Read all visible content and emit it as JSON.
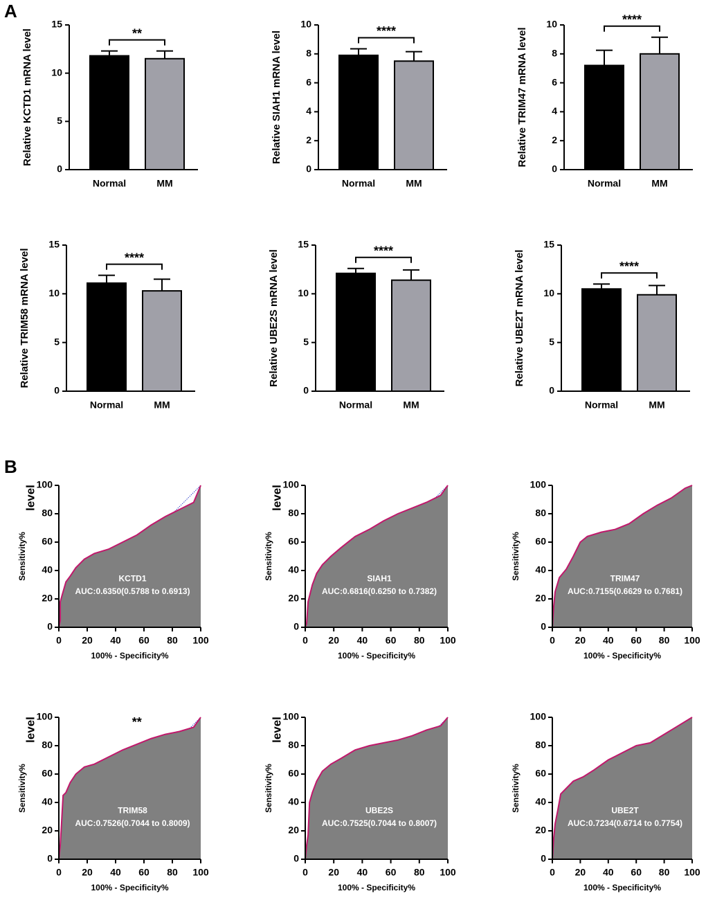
{
  "panel_labels": [
    "A",
    "B"
  ],
  "chart_data": [
    {
      "type": "bar",
      "ylabel": "Relative KCTD1 mRNA level",
      "categories": [
        "Normal",
        "MM"
      ],
      "values": [
        11.8,
        11.5
      ],
      "errors": [
        0.5,
        0.8
      ],
      "colors": [
        "#000000",
        "#a0a0a8"
      ],
      "ylim": [
        0,
        15
      ],
      "yticks": [
        0,
        5,
        10,
        15
      ],
      "annotation": "**"
    },
    {
      "type": "bar",
      "ylabel": "Relative SIAH1 mRNA level",
      "categories": [
        "Normal",
        "MM"
      ],
      "values": [
        7.9,
        7.5
      ],
      "errors": [
        0.45,
        0.65
      ],
      "colors": [
        "#000000",
        "#a0a0a8"
      ],
      "ylim": [
        0,
        10
      ],
      "yticks": [
        0,
        2,
        4,
        6,
        8,
        10
      ],
      "annotation": "****"
    },
    {
      "type": "bar",
      "ylabel": "Relative TRIM47 mRNA level",
      "categories": [
        "Normal",
        "MM"
      ],
      "values": [
        7.2,
        8.0
      ],
      "errors": [
        1.05,
        1.15
      ],
      "colors": [
        "#000000",
        "#a0a0a8"
      ],
      "ylim": [
        0,
        10
      ],
      "yticks": [
        0,
        2,
        4,
        6,
        8,
        10
      ],
      "annotation": "****"
    },
    {
      "type": "bar",
      "ylabel": "Relative TRIM58 mRNA level",
      "categories": [
        "Normal",
        "MM"
      ],
      "values": [
        11.1,
        10.3
      ],
      "errors": [
        0.8,
        1.2
      ],
      "colors": [
        "#000000",
        "#a0a0a8"
      ],
      "ylim": [
        0,
        15
      ],
      "yticks": [
        0,
        5,
        10,
        15
      ],
      "annotation": "****"
    },
    {
      "type": "bar",
      "ylabel": "Relative UBE2S mRNA level",
      "categories": [
        "Normal",
        "MM"
      ],
      "values": [
        12.1,
        11.4
      ],
      "errors": [
        0.5,
        1.05
      ],
      "colors": [
        "#000000",
        "#a0a0a8"
      ],
      "ylim": [
        0,
        15
      ],
      "yticks": [
        0,
        5,
        10,
        15
      ],
      "annotation": "****"
    },
    {
      "type": "bar",
      "ylabel": "Relative UBE2T mRNA level",
      "categories": [
        "Normal",
        "MM"
      ],
      "values": [
        10.5,
        9.9
      ],
      "errors": [
        0.5,
        0.95
      ],
      "colors": [
        "#000000",
        "#a0a0a8"
      ],
      "ylim": [
        0,
        15
      ],
      "yticks": [
        0,
        5,
        10,
        15
      ],
      "annotation": "****"
    },
    {
      "type": "roc",
      "name": "KCTD1",
      "auc_label": "AUC:0.6350(0.5788 to 0.6913)",
      "xlabel": "100% - Specificity%",
      "ylabel": "Sensitivity%",
      "overlay_text": "level",
      "fill": "#808080",
      "color": "#c0186b",
      "x": [
        0,
        1,
        1,
        3,
        5,
        8,
        12,
        18,
        25,
        35,
        45,
        55,
        65,
        75,
        85,
        95,
        100
      ],
      "y": [
        0,
        5,
        18,
        25,
        32,
        36,
        42,
        48,
        52,
        55,
        60,
        65,
        72,
        78,
        83,
        88,
        100
      ],
      "xlim": [
        0,
        100
      ],
      "ylim": [
        0,
        100
      ],
      "xticks": [
        0,
        20,
        40,
        60,
        80,
        100
      ],
      "yticks": [
        0,
        20,
        40,
        60,
        80,
        100
      ]
    },
    {
      "type": "roc",
      "name": "SIAH1",
      "auc_label": "AUC:0.6816(0.6250 to 0.7382)",
      "xlabel": "100% - Specificity%",
      "ylabel": "Sensitivity%",
      "overlay_text": "level",
      "fill": "#808080",
      "color": "#c0186b",
      "x": [
        0,
        1,
        2,
        3,
        5,
        8,
        12,
        18,
        25,
        35,
        45,
        55,
        65,
        75,
        85,
        95,
        100
      ],
      "y": [
        0,
        3,
        18,
        22,
        30,
        38,
        44,
        50,
        56,
        64,
        69,
        75,
        80,
        84,
        88,
        93,
        100
      ],
      "xlim": [
        0,
        100
      ],
      "ylim": [
        0,
        100
      ],
      "xticks": [
        0,
        20,
        40,
        60,
        80,
        100
      ],
      "yticks": [
        0,
        20,
        40,
        60,
        80,
        100
      ]
    },
    {
      "type": "roc",
      "name": "TRIM47",
      "auc_label": "AUC:0.7155(0.6629 to 0.7681)",
      "xlabel": "100% - Specificity%",
      "ylabel": "Sensitivity%",
      "fill": "#808080",
      "color": "#c0186b",
      "x": [
        0,
        1,
        2,
        5,
        10,
        15,
        20,
        25,
        35,
        45,
        55,
        65,
        75,
        85,
        95,
        100
      ],
      "y": [
        0,
        15,
        25,
        35,
        41,
        50,
        60,
        64,
        67,
        69,
        73,
        80,
        86,
        91,
        98,
        100
      ],
      "xlim": [
        0,
        100
      ],
      "ylim": [
        0,
        100
      ],
      "xticks": [
        0,
        20,
        40,
        60,
        80,
        100
      ],
      "yticks": [
        0,
        20,
        40,
        60,
        80,
        100
      ]
    },
    {
      "type": "roc",
      "name": "TRIM58",
      "auc_label": "AUC:0.7526(0.7044 to 0.8009)",
      "xlabel": "100% - Specificity%",
      "ylabel": "Sensitivity%",
      "overlay_text": "level",
      "annotation": "**",
      "fill": "#808080",
      "color": "#c0186b",
      "x": [
        0,
        1,
        2,
        3,
        5,
        8,
        12,
        18,
        25,
        35,
        45,
        55,
        65,
        75,
        85,
        95,
        100
      ],
      "y": [
        0,
        10,
        27,
        45,
        47,
        54,
        60,
        65,
        67,
        72,
        77,
        81,
        85,
        88,
        90,
        93,
        100
      ],
      "xlim": [
        0,
        100
      ],
      "ylim": [
        0,
        100
      ],
      "xticks": [
        0,
        20,
        40,
        60,
        80,
        100
      ],
      "yticks": [
        0,
        20,
        40,
        60,
        80,
        100
      ]
    },
    {
      "type": "roc",
      "name": "UBE2S",
      "auc_label": "AUC:0.7525(0.7044 to 0.8007)",
      "xlabel": "100% - Specificity%",
      "ylabel": "Sensitivity%",
      "overlay_text": "level",
      "fill": "#808080",
      "color": "#c0186b",
      "x": [
        0,
        1,
        2,
        3,
        5,
        8,
        12,
        18,
        25,
        35,
        45,
        55,
        65,
        75,
        85,
        95,
        100
      ],
      "y": [
        0,
        10,
        17,
        40,
        47,
        55,
        62,
        67,
        71,
        77,
        80,
        82,
        84,
        87,
        91,
        94,
        100
      ],
      "xlim": [
        0,
        100
      ],
      "ylim": [
        0,
        100
      ],
      "xticks": [
        0,
        20,
        40,
        60,
        80,
        100
      ],
      "yticks": [
        0,
        20,
        40,
        60,
        80,
        100
      ]
    },
    {
      "type": "roc",
      "name": "UBE2T",
      "auc_label": "AUC:0.7234(0.6714 to 0.7754)",
      "xlabel": "100% - Specificity%",
      "ylabel": "Sensitivity%",
      "fill": "#808080",
      "color": "#c0186b",
      "x": [
        0,
        1,
        2,
        4,
        6,
        10,
        15,
        22,
        30,
        40,
        50,
        60,
        70,
        80,
        90,
        100
      ],
      "y": [
        0,
        15,
        25,
        35,
        46,
        50,
        55,
        58,
        63,
        70,
        75,
        80,
        82,
        88,
        94,
        100
      ],
      "xlim": [
        0,
        100
      ],
      "ylim": [
        0,
        100
      ],
      "xticks": [
        0,
        20,
        40,
        60,
        80,
        100
      ],
      "yticks": [
        0,
        20,
        40,
        60,
        80,
        100
      ]
    }
  ]
}
